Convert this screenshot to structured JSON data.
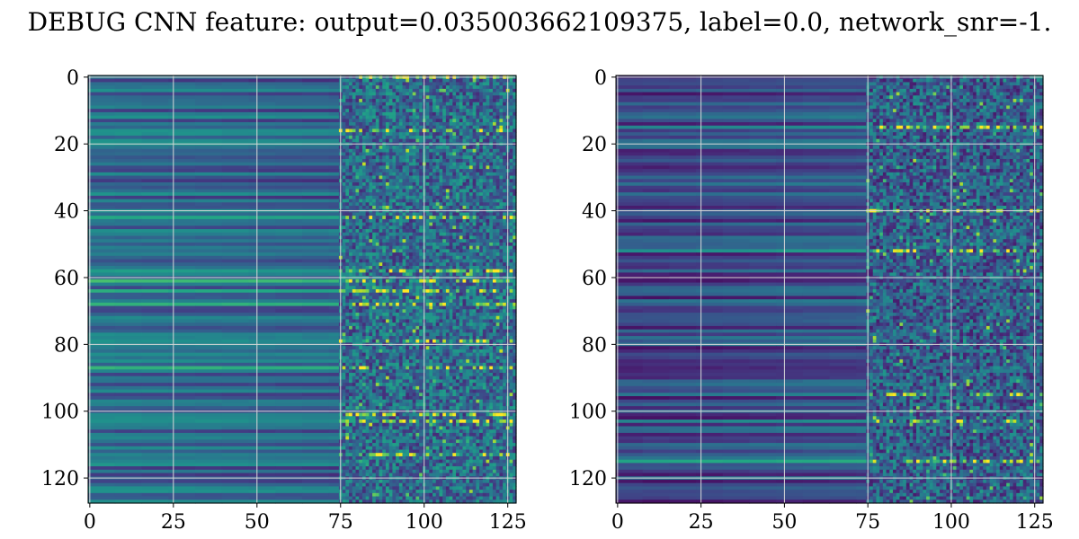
{
  "figure": {
    "title": "DEBUG CNN feature: output=0.035003662109375, label=0.0, network_snr=-1."
  },
  "colors": {
    "background": "#ffffff",
    "grid": "#d8d8d8",
    "axis": "#000000",
    "colormap": "viridis"
  },
  "chart_data": [
    {
      "type": "heatmap",
      "colormap": "viridis",
      "shape": [
        128,
        128
      ],
      "xlim": [
        0,
        127
      ],
      "ylim": [
        127,
        0
      ],
      "y_inverted": true,
      "grid": true,
      "xticks": [
        0,
        25,
        50,
        75,
        100,
        125
      ],
      "yticks": [
        0,
        20,
        40,
        60,
        80,
        100,
        120
      ],
      "value_range": [
        0,
        1
      ],
      "bright_rows": [
        0,
        16,
        42,
        58,
        61,
        64,
        68,
        79,
        87,
        101,
        103,
        113
      ],
      "columns_noisy_from": 75,
      "description_values": {
        "row_base_left_mean": 0.35,
        "right_side_noise_mean": 0.35
      }
    },
    {
      "type": "heatmap",
      "colormap": "viridis",
      "shape": [
        128,
        128
      ],
      "xlim": [
        0,
        127
      ],
      "ylim": [
        127,
        0
      ],
      "y_inverted": true,
      "grid": true,
      "xticks": [
        0,
        25,
        50,
        75,
        100,
        125
      ],
      "yticks": [
        0,
        20,
        40,
        60,
        80,
        100,
        120
      ],
      "value_range": [
        0,
        1
      ],
      "bright_rows": [
        15,
        40,
        52,
        95,
        103,
        115
      ],
      "columns_noisy_from": 75,
      "description_values": {
        "row_base_left_mean": 0.2,
        "right_side_noise_mean": 0.3
      }
    }
  ]
}
